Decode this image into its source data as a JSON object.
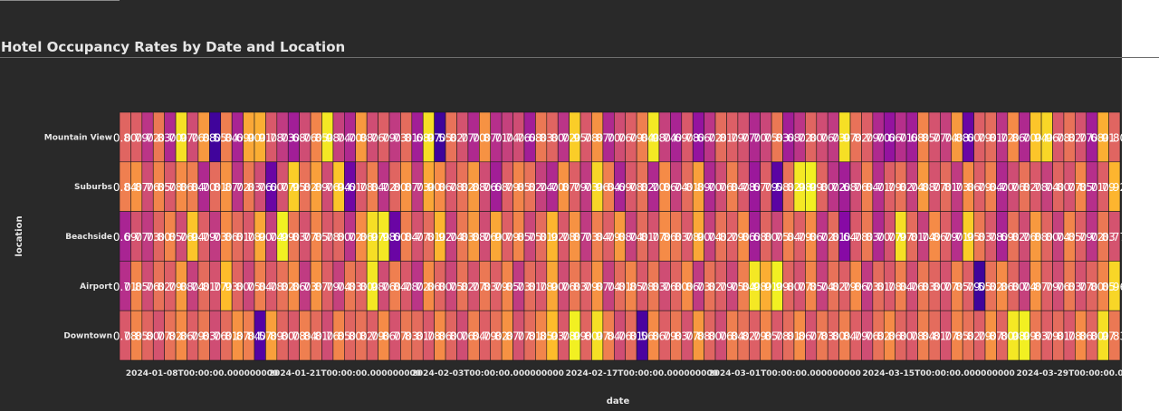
{
  "page": {
    "title": "Hotel Occupancy Rates by Date and Location"
  },
  "chart_data": {
    "type": "heatmap",
    "title": "Hotel Occupancy Rates by Date and Location",
    "xlabel": "date",
    "ylabel": "location",
    "colorscale": "plasma",
    "background": "#292929",
    "cell_border_color": "#1a1a1a",
    "text_color": "#ffffff",
    "tick_color": "#e6e6e6",
    "y_categories": [
      "Mountain View",
      "Suburbs",
      "Beachside",
      "Airport",
      "Downtown"
    ],
    "x_range": [
      "2024-01-01",
      "2024-03-31"
    ],
    "x_tick_labels": [
      "2024-01-08T00:00:00.000000000",
      "2024-01-21T00:00:00.000000000",
      "2024-02-03T00:00:00.000000000",
      "2024-02-17T00:00:00.000000000",
      "2024-03-01T00:00:00.000000000",
      "2024-03-15T00:00:00.000000000",
      "2024-03-29T00:00:00.000000000"
    ],
    "value_range": [
      0.5,
      1.0
    ],
    "values": [
      [
        0.8,
        0.79,
        0.72,
        0.83,
        0.7,
        0.97,
        0.76,
        0.88,
        0.55,
        0.84,
        0.69,
        0.9,
        0.91,
        0.78,
        0.73,
        0.68,
        0.76,
        0.85,
        0.98,
        0.74,
        0.7,
        0.88,
        0.76,
        0.79,
        0.73,
        0.81,
        0.68,
        0.97,
        0.55,
        0.82,
        0.77,
        0.7,
        0.87,
        0.71,
        0.74,
        0.76,
        0.68,
        0.83,
        0.8,
        0.72,
        0.95,
        0.78,
        0.87,
        0.7,
        0.76,
        0.79,
        0.84,
        0.98,
        0.74,
        0.69,
        0.78,
        0.66,
        0.72,
        0.81,
        0.79,
        0.77,
        0.7,
        0.75,
        0.83,
        0.68,
        0.72,
        0.8,
        0.76,
        0.73,
        0.97,
        0.82,
        0.79,
        0.7,
        0.66,
        0.71,
        0.68,
        0.85,
        0.77,
        0.74,
        0.88,
        0.6,
        0.79,
        0.81,
        0.72,
        0.86,
        0.7,
        0.94,
        0.96,
        0.78,
        0.82,
        0.77,
        0.68,
        0.91,
        0.8
      ],
      [
        0.84,
        0.87,
        0.76,
        0.85,
        0.78,
        0.86,
        0.84,
        0.7,
        0.81,
        0.87,
        0.72,
        0.83,
        0.76,
        0.6,
        0.77,
        0.95,
        0.82,
        0.89,
        0.76,
        0.94,
        0.61,
        0.78,
        0.84,
        0.72,
        0.8,
        0.87,
        0.73,
        0.9,
        0.86,
        0.78,
        0.82,
        0.88,
        0.76,
        0.68,
        0.79,
        0.85,
        0.82,
        0.74,
        0.7,
        0.87,
        0.79,
        0.73,
        0.96,
        0.84,
        0.69,
        0.78,
        0.82,
        0.7,
        0.86,
        0.74,
        0.81,
        0.89,
        0.7,
        0.76,
        0.84,
        0.78,
        0.67,
        0.79,
        0.58,
        0.82,
        0.98,
        0.99,
        0.8,
        0.72,
        0.68,
        0.76,
        0.84,
        0.71,
        0.79,
        0.82,
        0.74,
        0.88,
        0.77,
        0.81,
        0.73,
        0.86,
        0.79,
        0.84,
        0.7,
        0.76,
        0.82,
        0.78,
        0.74,
        0.8,
        0.77,
        0.85,
        0.71,
        0.79,
        0.92
      ],
      [
        0.69,
        0.77,
        0.73,
        0.8,
        0.85,
        0.76,
        0.94,
        0.79,
        0.73,
        0.86,
        0.81,
        0.78,
        0.9,
        0.74,
        0.99,
        0.83,
        0.77,
        0.85,
        0.78,
        0.8,
        0.72,
        0.86,
        0.97,
        0.98,
        0.6,
        0.84,
        0.77,
        0.81,
        0.92,
        0.74,
        0.83,
        0.88,
        0.76,
        0.9,
        0.79,
        0.85,
        0.75,
        0.81,
        0.92,
        0.78,
        0.87,
        0.73,
        0.84,
        0.79,
        0.88,
        0.74,
        0.81,
        0.77,
        0.86,
        0.83,
        0.78,
        0.9,
        0.74,
        0.82,
        0.79,
        0.86,
        0.68,
        0.8,
        0.75,
        0.84,
        0.79,
        0.86,
        0.72,
        0.81,
        0.64,
        0.78,
        0.83,
        0.7,
        0.77,
        0.97,
        0.81,
        0.74,
        0.86,
        0.79,
        0.71,
        0.95,
        0.83,
        0.78,
        0.69,
        0.82,
        0.76,
        0.88,
        0.8,
        0.74,
        0.85,
        0.79,
        0.72,
        0.83,
        0.77
      ],
      [
        0.71,
        0.85,
        0.76,
        0.82,
        0.79,
        0.88,
        0.74,
        0.81,
        0.77,
        0.93,
        0.8,
        0.75,
        0.84,
        0.78,
        0.82,
        0.86,
        0.73,
        0.87,
        0.79,
        0.74,
        0.83,
        0.8,
        0.98,
        0.76,
        0.84,
        0.78,
        0.72,
        0.86,
        0.8,
        0.75,
        0.82,
        0.77,
        0.83,
        0.79,
        0.85,
        0.73,
        0.81,
        0.78,
        0.9,
        0.76,
        0.83,
        0.79,
        0.87,
        0.74,
        0.81,
        0.85,
        0.78,
        0.83,
        0.76,
        0.8,
        0.86,
        0.73,
        0.82,
        0.79,
        0.75,
        0.84,
        0.98,
        0.91,
        0.99,
        0.8,
        0.77,
        0.85,
        0.74,
        0.82,
        0.79,
        0.86,
        0.73,
        0.81,
        0.78,
        0.84,
        0.76,
        0.83,
        0.8,
        0.77,
        0.85,
        0.79,
        0.55,
        0.82,
        0.86,
        0.8,
        0.74,
        0.87,
        0.79,
        0.76,
        0.83,
        0.77,
        0.8,
        0.85,
        0.96
      ],
      [
        0.78,
        0.85,
        0.8,
        0.77,
        0.82,
        0.86,
        0.79,
        0.83,
        0.76,
        0.81,
        0.87,
        0.84,
        0.57,
        0.89,
        0.8,
        0.78,
        0.84,
        0.81,
        0.76,
        0.85,
        0.8,
        0.82,
        0.79,
        0.86,
        0.77,
        0.83,
        0.81,
        0.78,
        0.86,
        0.8,
        0.76,
        0.84,
        0.79,
        0.82,
        0.87,
        0.77,
        0.81,
        0.85,
        0.93,
        0.78,
        0.99,
        0.8,
        0.97,
        0.84,
        0.76,
        0.81,
        0.56,
        0.86,
        0.79,
        0.83,
        0.77,
        0.88,
        0.8,
        0.76,
        0.84,
        0.82,
        0.79,
        0.85,
        0.78,
        0.81,
        0.86,
        0.77,
        0.83,
        0.8,
        0.84,
        0.79,
        0.76,
        0.82,
        0.86,
        0.8,
        0.78,
        0.84,
        0.81,
        0.77,
        0.85,
        0.82,
        0.79,
        0.87,
        0.8,
        0.98,
        0.99,
        0.83,
        0.79,
        0.81,
        0.78,
        0.86,
        0.8,
        0.97,
        0.83
      ]
    ]
  }
}
